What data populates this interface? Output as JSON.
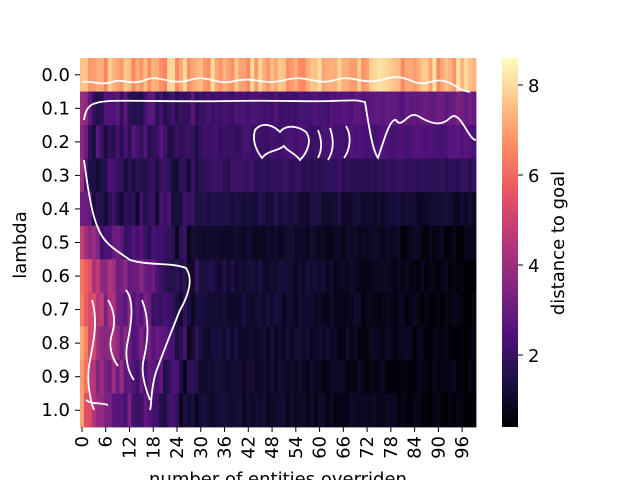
{
  "chart_data": {
    "type": "heatmap",
    "title": "",
    "xlabel": "number of entities overriden",
    "ylabel": "lambda",
    "colorbar_label": "distance to goal",
    "colormap": "magma",
    "value_range": [
      0.4,
      8.6
    ],
    "x_tick_labels": [
      "0",
      "6",
      "12",
      "18",
      "24",
      "30",
      "36",
      "42",
      "48",
      "54",
      "60",
      "66",
      "72",
      "78",
      "84",
      "90",
      "96"
    ],
    "x_tick_values": [
      0,
      6,
      12,
      18,
      24,
      30,
      36,
      42,
      48,
      54,
      60,
      66,
      72,
      78,
      84,
      90,
      96
    ],
    "x_count": 100,
    "y_tick_labels": [
      "0.0",
      "0.1",
      "0.2",
      "0.3",
      "0.4",
      "0.5",
      "0.6",
      "0.7",
      "0.8",
      "0.9",
      "1.0"
    ],
    "colorbar_ticks": [
      "2",
      "4",
      "6",
      "8"
    ],
    "colorbar_tick_values": [
      2,
      4,
      6,
      8
    ],
    "contour_color": "#ffffff",
    "series": [
      {
        "lambda": "0.0",
        "x0": 0,
        "x1": 5,
        "x2": 20,
        "x3": 99,
        "vals": [
          7.6,
          7.2,
          7.2,
          7.4
        ]
      },
      {
        "lambda": "0.1",
        "x0": 0,
        "x1": 2,
        "x2": 60,
        "x3": 99,
        "vals": [
          4.5,
          2.2,
          2.3,
          3.1
        ]
      },
      {
        "lambda": "0.2",
        "x0": 0,
        "x1": 2,
        "x2": 40,
        "x3": 99,
        "vals": [
          4.0,
          2.0,
          2.1,
          2.5
        ]
      },
      {
        "lambda": "0.3",
        "x0": 0,
        "x1": 2,
        "x2": 40,
        "x3": 99,
        "vals": [
          3.5,
          1.8,
          1.9,
          1.8
        ]
      },
      {
        "lambda": "0.4",
        "x0": 0,
        "x1": 3,
        "x2": 30,
        "x3": 99,
        "vals": [
          3.6,
          1.9,
          1.5,
          1.0
        ]
      },
      {
        "lambda": "0.5",
        "x0": 0,
        "x1": 4,
        "x2": 28,
        "x3": 99,
        "vals": [
          5.0,
          2.8,
          1.2,
          0.6
        ]
      },
      {
        "lambda": "0.6",
        "x0": 0,
        "x1": 4,
        "x2": 28,
        "x3": 99,
        "vals": [
          6.2,
          4.4,
          1.4,
          0.5
        ]
      },
      {
        "lambda": "0.7",
        "x0": 0,
        "x1": 4,
        "x2": 28,
        "x3": 99,
        "vals": [
          6.4,
          4.2,
          1.3,
          0.5
        ]
      },
      {
        "lambda": "0.8",
        "x0": 0,
        "x1": 4,
        "x2": 28,
        "x3": 99,
        "vals": [
          6.6,
          4.2,
          1.3,
          0.5
        ]
      },
      {
        "lambda": "0.9",
        "x0": 0,
        "x1": 4,
        "x2": 28,
        "x3": 99,
        "vals": [
          6.3,
          4.0,
          1.2,
          0.5
        ]
      },
      {
        "lambda": "1.0",
        "x0": 0,
        "x1": 4,
        "x2": 28,
        "x3": 99,
        "vals": [
          6.4,
          3.6,
          1.2,
          0.5
        ]
      }
    ]
  }
}
